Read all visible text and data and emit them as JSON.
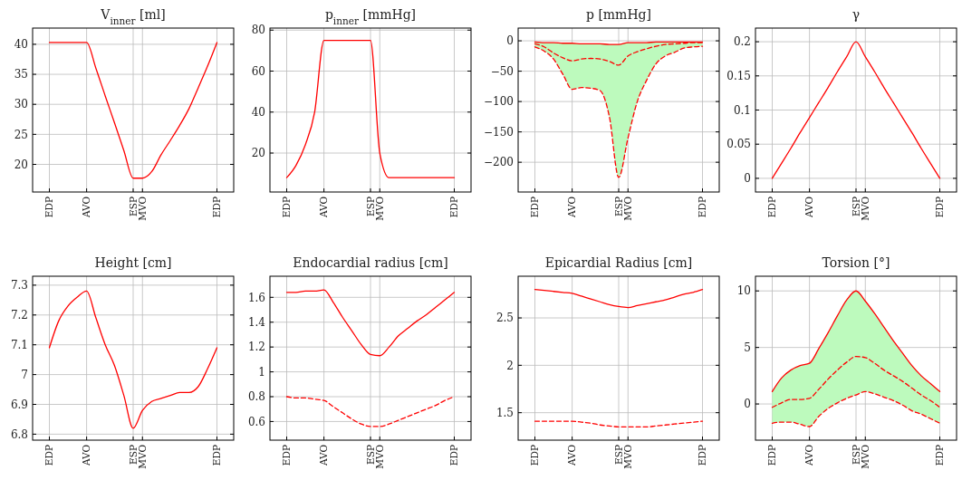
{
  "chart_data": [
    {
      "type": "line",
      "title": "V$_{inner}$ [ml]",
      "categories": [
        "EDP",
        null,
        null,
        null,
        "AVO",
        null,
        null,
        null,
        null,
        "ESP",
        "MVO",
        null,
        null,
        null,
        null,
        null,
        null,
        null,
        "EDP"
      ],
      "ylim": [
        15.4,
        42.7
      ],
      "yticks": [
        20,
        25,
        30,
        35,
        40
      ],
      "grid": true,
      "series": [
        {
          "color": "#ff0000",
          "line_style": "solid",
          "values": [
            40.3,
            40.3,
            40.3,
            40.3,
            40.3,
            36,
            31.4,
            26.9,
            22.3,
            17.7,
            17.7,
            18.8,
            21.6,
            24,
            26.5,
            29.3,
            32.8,
            36.4,
            40.3
          ]
        }
      ]
    },
    {
      "type": "line",
      "title": "p$_{inner}$ [mmHg]",
      "categories": [
        "EDP",
        null,
        null,
        null,
        "AVO",
        null,
        null,
        null,
        null,
        "ESP",
        "MVO",
        null,
        null,
        null,
        null,
        null,
        null,
        null,
        "EDP"
      ],
      "ylim": [
        1,
        81
      ],
      "yticks": [
        20,
        40,
        60,
        80
      ],
      "grid": true,
      "series": [
        {
          "color": "#ff0000",
          "line_style": "solid",
          "values": [
            8,
            14,
            24,
            40,
            75,
            75,
            75,
            75,
            75,
            75,
            20,
            8,
            8,
            8,
            8,
            8,
            8,
            8,
            8
          ]
        }
      ]
    },
    {
      "type": "line",
      "title": "p [mmHg]",
      "categories": [
        "EDP",
        null,
        null,
        null,
        "AVO",
        null,
        null,
        null,
        null,
        "ESP",
        "MVO",
        null,
        null,
        null,
        null,
        null,
        null,
        null,
        "EDP"
      ],
      "ylim": [
        -249,
        21
      ],
      "yticks": [
        -200,
        -150,
        -100,
        -50,
        0
      ],
      "grid": true,
      "series": [
        {
          "color": "#ff0000",
          "line_style": "solid",
          "values": [
            -2,
            -3,
            -3,
            -4,
            -4,
            -5,
            -5,
            -5,
            -6,
            -6,
            -3,
            -3,
            -3,
            -2,
            -2,
            -2,
            -2,
            -2,
            -2
          ]
        },
        {
          "color": "#ff0000",
          "line_style": "dashed",
          "values": [
            -5,
            -10,
            -20,
            -28,
            -33,
            -30,
            -29,
            -30,
            -34,
            -40,
            -25,
            -18,
            -13,
            -9,
            -6,
            -5,
            -4,
            -3,
            -3
          ],
          "lower": [
            -10,
            -17,
            -30,
            -55,
            -80,
            -77,
            -78,
            -82,
            -125,
            -225,
            -160,
            -100,
            -65,
            -38,
            -25,
            -19,
            -12,
            -10,
            -9
          ],
          "upper": [
            -2,
            -3,
            -3,
            -4,
            -4,
            -5,
            -5,
            -5,
            -6,
            -6,
            -3,
            -3,
            -3,
            -2,
            -2,
            -2,
            -2,
            -2,
            -2
          ]
        },
        {
          "color": "#ff0000",
          "line_style": "dashed",
          "values": [
            -10,
            -17,
            -30,
            -55,
            -80,
            -77,
            -78,
            -82,
            -125,
            -225,
            -160,
            -100,
            -65,
            -38,
            -25,
            -19,
            -12,
            -10,
            -9
          ]
        }
      ]
    },
    {
      "type": "line",
      "title": "γ",
      "categories": [
        "EDP",
        null,
        null,
        null,
        "AVO",
        null,
        null,
        null,
        null,
        "ESP",
        "MVO",
        null,
        null,
        null,
        null,
        null,
        null,
        null,
        "EDP"
      ],
      "ylim": [
        -0.02,
        0.22
      ],
      "yticks": [
        0,
        0.05,
        0.1,
        0.15,
        0.2
      ],
      "grid": true,
      "series": [
        {
          "color": "#ff0000",
          "line_style": "solid",
          "values": [
            0,
            0.022,
            0.044,
            0.067,
            0.089,
            0.111,
            0.133,
            0.156,
            0.178,
            0.2,
            0.178,
            0.156,
            0.133,
            0.111,
            0.089,
            0.067,
            0.044,
            0.022,
            0
          ]
        }
      ]
    },
    {
      "type": "line",
      "title": "Height [cm]",
      "categories": [
        "EDP",
        null,
        null,
        null,
        "AVO",
        null,
        null,
        null,
        null,
        "ESP",
        "MVO",
        null,
        null,
        null,
        null,
        null,
        null,
        null,
        "EDP"
      ],
      "ylim": [
        6.78,
        7.33
      ],
      "yticks": [
        6.8,
        6.9,
        7,
        7.1,
        7.2,
        7.3
      ],
      "grid": true,
      "series": [
        {
          "color": "#ff0000",
          "line_style": "solid",
          "values": [
            7.09,
            7.18,
            7.23,
            7.26,
            7.28,
            7.19,
            7.1,
            7.03,
            6.93,
            6.82,
            6.88,
            6.91,
            6.92,
            6.93,
            6.94,
            6.94,
            6.96,
            7.02,
            7.09
          ]
        }
      ]
    },
    {
      "type": "line",
      "title": "Endocardial radius [cm]",
      "categories": [
        "EDP",
        null,
        null,
        null,
        "AVO",
        null,
        null,
        null,
        null,
        "ESP",
        "MVO",
        null,
        null,
        null,
        null,
        null,
        null,
        null,
        "EDP"
      ],
      "ylim": [
        0.45,
        1.77
      ],
      "yticks": [
        0.6,
        0.8,
        1,
        1.2,
        1.4,
        1.6
      ],
      "grid": true,
      "series": [
        {
          "color": "#ff0000",
          "line_style": "solid",
          "values": [
            1.64,
            1.64,
            1.65,
            1.65,
            1.66,
            1.56,
            1.44,
            1.33,
            1.22,
            1.14,
            1.13,
            1.2,
            1.29,
            1.35,
            1.41,
            1.46,
            1.52,
            1.58,
            1.64
          ]
        },
        {
          "color": "#ff0000",
          "line_style": "dashed",
          "values": [
            0.8,
            0.79,
            0.79,
            0.78,
            0.77,
            0.72,
            0.67,
            0.62,
            0.58,
            0.56,
            0.56,
            0.58,
            0.61,
            0.64,
            0.67,
            0.7,
            0.73,
            0.77,
            0.8
          ]
        }
      ]
    },
    {
      "type": "line",
      "title": "Epicardial Radius [cm]",
      "categories": [
        "EDP",
        null,
        null,
        null,
        "AVO",
        null,
        null,
        null,
        null,
        "ESP",
        "MVO",
        null,
        null,
        null,
        null,
        null,
        null,
        null,
        "EDP"
      ],
      "ylim": [
        1.21,
        2.94
      ],
      "yticks": [
        1.5,
        2,
        2.5
      ],
      "grid": true,
      "series": [
        {
          "color": "#ff0000",
          "line_style": "solid",
          "values": [
            2.8,
            2.79,
            2.78,
            2.77,
            2.76,
            2.73,
            2.7,
            2.67,
            2.64,
            2.62,
            2.61,
            2.63,
            2.65,
            2.67,
            2.69,
            2.72,
            2.75,
            2.77,
            2.8
          ]
        },
        {
          "color": "#ff0000",
          "line_style": "dashed",
          "values": [
            1.41,
            1.41,
            1.41,
            1.41,
            1.41,
            1.4,
            1.39,
            1.37,
            1.36,
            1.35,
            1.35,
            1.35,
            1.35,
            1.36,
            1.37,
            1.38,
            1.39,
            1.4,
            1.41
          ]
        }
      ]
    },
    {
      "type": "line",
      "title": "Torsion [°]",
      "categories": [
        "EDP",
        null,
        null,
        null,
        "AVO",
        null,
        null,
        null,
        null,
        "ESP",
        "MVO",
        null,
        null,
        null,
        null,
        null,
        null,
        null,
        "EDP"
      ],
      "ylim": [
        -3.2,
        11.3
      ],
      "yticks": [
        0,
        5,
        10
      ],
      "grid": true,
      "series": [
        {
          "color": "#ff0000",
          "line_style": "solid",
          "values": [
            1.1,
            2.3,
            3,
            3.4,
            3.6,
            4.9,
            6.3,
            7.8,
            9.2,
            10,
            9.1,
            8,
            6.8,
            5.6,
            4.5,
            3.4,
            2.5,
            1.8,
            1.1
          ]
        },
        {
          "color": "#ff0000",
          "line_style": "dashed",
          "values": [
            -0.3,
            0.1,
            0.4,
            0.4,
            0.5,
            1.3,
            2.2,
            3,
            3.7,
            4.2,
            4.1,
            3.6,
            3,
            2.5,
            2,
            1.4,
            0.8,
            0.3,
            -0.3
          ],
          "lower": [
            -1.7,
            -1.6,
            -1.6,
            -1.8,
            -2,
            -1.1,
            -0.4,
            0.1,
            0.5,
            0.8,
            1.1,
            0.9,
            0.6,
            0.3,
            -0.1,
            -0.6,
            -0.9,
            -1.3,
            -1.7
          ],
          "upper": [
            1.1,
            2.3,
            3,
            3.4,
            3.6,
            4.9,
            6.3,
            7.8,
            9.2,
            10,
            9.1,
            8,
            6.8,
            5.6,
            4.5,
            3.4,
            2.5,
            1.8,
            1.1
          ]
        },
        {
          "color": "#ff0000",
          "line_style": "dashed",
          "values": [
            -1.7,
            -1.6,
            -1.6,
            -1.8,
            -2,
            -1.1,
            -0.4,
            0.1,
            0.5,
            0.8,
            1.1,
            0.9,
            0.6,
            0.3,
            -0.1,
            -0.6,
            -0.9,
            -1.3,
            -1.7
          ]
        }
      ]
    }
  ]
}
